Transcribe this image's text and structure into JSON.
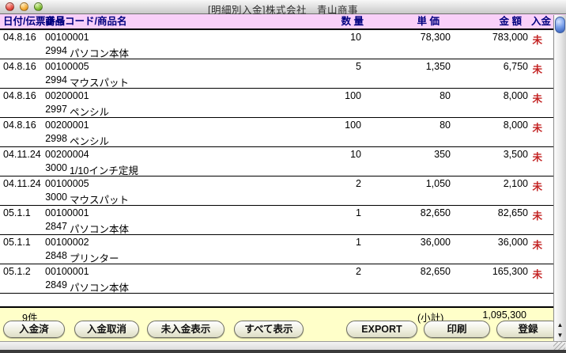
{
  "window": {
    "title": "[明細別入金]株式会社　青山商事"
  },
  "colors": {
    "header_bg": "#f9d0f9",
    "header_text": "#00007f",
    "footer_bg": "#ffffc9",
    "status_red": "#c32222"
  },
  "header": {
    "col_date_voucher": "日付/伝票番号",
    "col_product": "商品コード/商品名",
    "col_quantity": "数 量",
    "col_unit_price": "単 価",
    "col_amount": "金 額",
    "col_payment": "入金"
  },
  "table": {
    "rows": [
      {
        "date": "04.8.16",
        "voucher_no": "00100001",
        "detail_no": "2994",
        "product_name": "パソコン本体",
        "quantity": "10",
        "unit_price": "78,300",
        "amount": "783,000",
        "status": "未"
      },
      {
        "date": "04.8.16",
        "voucher_no": "00100005",
        "detail_no": "2994",
        "product_name": "マウスパット",
        "quantity": "5",
        "unit_price": "1,350",
        "amount": "6,750",
        "status": "未"
      },
      {
        "date": "04.8.16",
        "voucher_no": "00200001",
        "detail_no": "2997",
        "product_name": "ペンシル",
        "quantity": "100",
        "unit_price": "80",
        "amount": "8,000",
        "status": "未"
      },
      {
        "date": "04.8.16",
        "voucher_no": "00200001",
        "detail_no": "2998",
        "product_name": "ペンシル",
        "quantity": "100",
        "unit_price": "80",
        "amount": "8,000",
        "status": "未"
      },
      {
        "date": "04.11.24",
        "voucher_no": "00200004",
        "detail_no": "3000",
        "product_name": "1/10インチ定規",
        "quantity": "10",
        "unit_price": "350",
        "amount": "3,500",
        "status": "未"
      },
      {
        "date": "04.11.24",
        "voucher_no": "00100005",
        "detail_no": "3000",
        "product_name": "マウスパット",
        "quantity": "2",
        "unit_price": "1,050",
        "amount": "2,100",
        "status": "未"
      },
      {
        "date": "05.1.1",
        "voucher_no": "00100001",
        "detail_no": "2847",
        "product_name": "パソコン本体",
        "quantity": "1",
        "unit_price": "82,650",
        "amount": "82,650",
        "status": "未"
      },
      {
        "date": "05.1.1",
        "voucher_no": "00100002",
        "detail_no": "2848",
        "product_name": "プリンター",
        "quantity": "1",
        "unit_price": "36,000",
        "amount": "36,000",
        "status": "未"
      },
      {
        "date": "05.1.2",
        "voucher_no": "00100001",
        "detail_no": "2849",
        "product_name": "パソコン本体",
        "quantity": "2",
        "unit_price": "82,650",
        "amount": "165,300",
        "status": "未"
      }
    ]
  },
  "footer": {
    "count": "9件",
    "subtotal_label": "(小計)",
    "subtotal_value": "1,095,300",
    "buttons": {
      "paid": "入金済",
      "cancel": "入金取消",
      "unpaid_view": "未入金表示",
      "show_all": "すべて表示",
      "export": "EXPORT",
      "print": "印刷",
      "register": "登録"
    }
  },
  "icons": {
    "scroll_up": "▲",
    "scroll_down": "▼"
  }
}
